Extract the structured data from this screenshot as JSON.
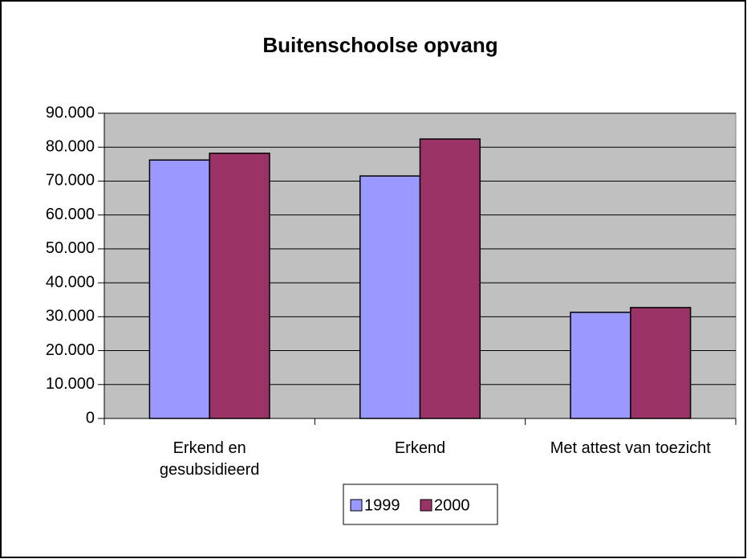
{
  "chart_data": {
    "type": "bar",
    "title": "Buitenschoolse opvang",
    "categories": [
      "Erkend en gesubsidieerd",
      "Erkend",
      "Met attest van toezicht"
    ],
    "series": [
      {
        "name": "1999",
        "color": "#9999FF",
        "values": [
          76200,
          71500,
          31300
        ]
      },
      {
        "name": "2000",
        "color": "#993366",
        "values": [
          78200,
          82400,
          32700
        ]
      }
    ],
    "ylim": [
      0,
      90000
    ],
    "yticks": [
      {
        "value": 0,
        "label": "0"
      },
      {
        "value": 10000,
        "label": "10.000"
      },
      {
        "value": 20000,
        "label": "20.000"
      },
      {
        "value": 30000,
        "label": "30.000"
      },
      {
        "value": 40000,
        "label": "40.000"
      },
      {
        "value": 50000,
        "label": "50.000"
      },
      {
        "value": 60000,
        "label": "60.000"
      },
      {
        "value": 70000,
        "label": "70.000"
      },
      {
        "value": 80000,
        "label": "80.000"
      },
      {
        "value": 90000,
        "label": "90.000"
      }
    ],
    "grid": true,
    "legend": "bottom",
    "plot_background": "#C0C0C0"
  }
}
